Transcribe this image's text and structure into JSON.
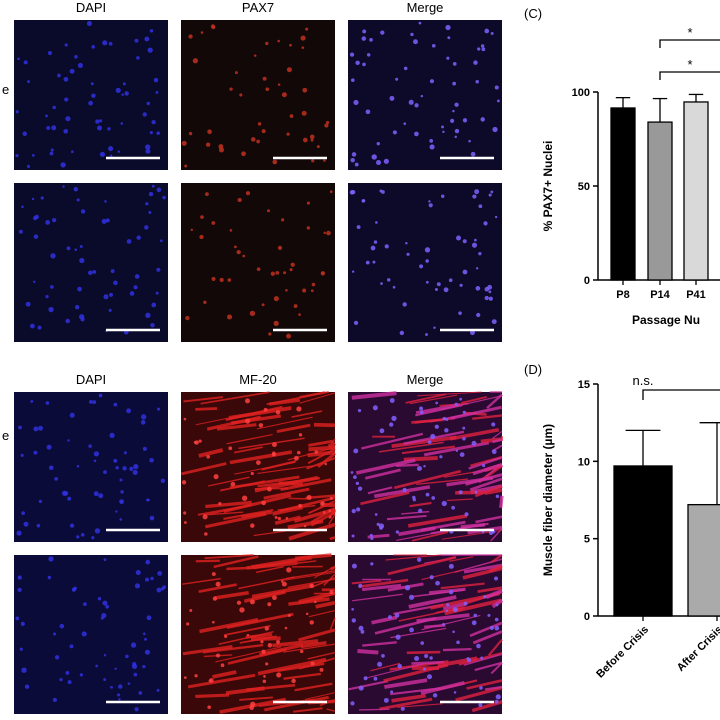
{
  "figure": {
    "image_panels": [
      {
        "row_label": "e",
        "headers": [
          "DAPI",
          "PAX7",
          "Merge"
        ]
      },
      {
        "row_label": "e",
        "headers": [
          "DAPI",
          "MF-20",
          "Merge"
        ]
      }
    ]
  },
  "chart_data": [
    {
      "type": "bar",
      "panel_label": "(C)",
      "y_label": "% PAX7+ Nuclei",
      "x_label": "Passage Nu",
      "categories": [
        "P8",
        "P14",
        "P41"
      ],
      "values": [
        91.5,
        84,
        94.7
      ],
      "errors": [
        5.5,
        12.5,
        4
      ],
      "colors": [
        "#000000",
        "#999999",
        "#d9d9d9"
      ],
      "ylim": [
        0,
        100
      ],
      "yticks": [
        0,
        50,
        100
      ],
      "annotations": [
        "*",
        "*"
      ]
    },
    {
      "type": "bar",
      "panel_label": "(D)",
      "y_label": "Muscle fiber diameter (µm)",
      "categories": [
        "Before Crisis",
        "After Crisis"
      ],
      "values": [
        9.7,
        7.2
      ],
      "errors": [
        2.3,
        5.3
      ],
      "colors": [
        "#000000",
        "#aaaaaa"
      ],
      "ylim": [
        0,
        15
      ],
      "yticks": [
        0,
        5,
        10,
        15
      ],
      "annotations": [
        "n.s."
      ]
    }
  ]
}
